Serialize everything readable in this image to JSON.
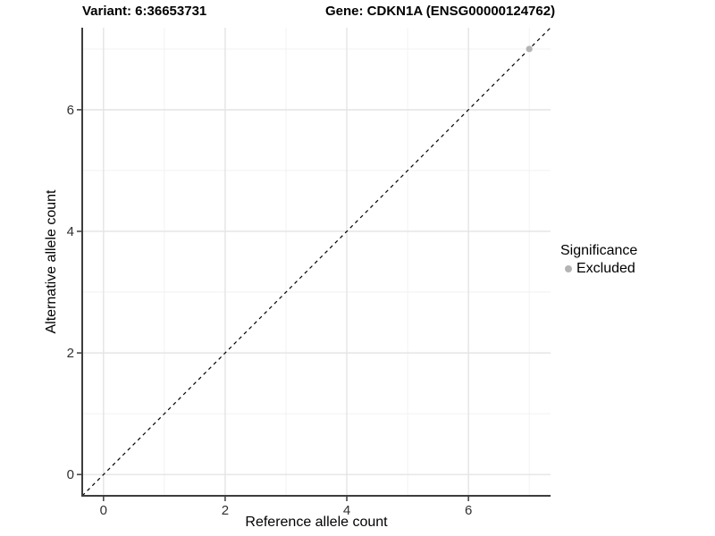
{
  "titles": {
    "variant": "Variant: 6:36653731",
    "gene": "Gene: CDKN1A (ENSG00000124762)"
  },
  "legend": {
    "title": "Significance",
    "items": [
      {
        "label": "Excluded",
        "color": "#b4b4b4",
        "marker": "circle"
      }
    ],
    "position": "right"
  },
  "colors": {
    "excluded_point": "#b4b4b4",
    "identity_line": "#000000",
    "axis_line": "#3d3d3d",
    "tick_label": "#303030",
    "grid_major": "#e4e4e4",
    "grid_minor": "#f2f2f2",
    "background": "#ffffff"
  },
  "chart_data": {
    "type": "scatter",
    "title_left": "Variant: 6:36653731",
    "title_right": "Gene: CDKN1A (ENSG00000124762)",
    "xlabel": "Reference allele count",
    "ylabel": "Alternative allele count",
    "xlim": [
      -0.35,
      7.35
    ],
    "ylim": [
      -0.35,
      7.35
    ],
    "xticks": [
      0,
      2,
      4,
      6
    ],
    "yticks": [
      0,
      2,
      4,
      6
    ],
    "minor_xticks": [
      1,
      3,
      5,
      7
    ],
    "minor_yticks": [
      1,
      3,
      5,
      7
    ],
    "grid": true,
    "legend_position": "right",
    "series": [
      {
        "name": "Excluded",
        "color": "#b4b4b4",
        "points": [
          {
            "x": 7,
            "y": 7
          }
        ]
      }
    ],
    "identity_line": {
      "slope": 1,
      "intercept": 0,
      "style": "dashed"
    }
  }
}
